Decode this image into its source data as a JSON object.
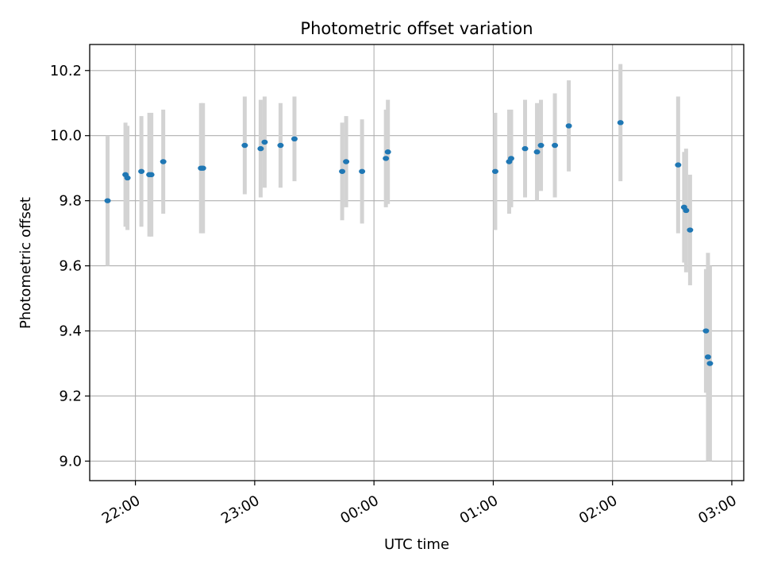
{
  "chart_data": {
    "type": "scatter",
    "title": "Photometric offset variation",
    "xlabel": "UTC time",
    "ylabel": "Photometric offset",
    "x_axis_kind": "time",
    "x_range": [
      "21:37",
      "03:06"
    ],
    "ylim": [
      8.94,
      10.28
    ],
    "x_ticks": [
      "22:00",
      "23:00",
      "00:00",
      "01:00",
      "02:00",
      "03:00"
    ],
    "y_ticks": [
      9.0,
      9.2,
      9.4,
      9.6,
      9.8,
      10.0,
      10.2
    ],
    "y_tick_labels": [
      "9.0",
      "9.2",
      "9.4",
      "9.6",
      "9.8",
      "10.0",
      "10.2"
    ],
    "grid": true,
    "colors": {
      "points": "#1f77b4",
      "errorbars": "#d3d3d3",
      "grid": "#b0b0b0",
      "axes": "#000000"
    },
    "series": [
      {
        "points": [
          {
            "x": "21:46",
            "y": 9.8,
            "err": 0.2
          },
          {
            "x": "21:55",
            "y": 9.88,
            "err": 0.16
          },
          {
            "x": "21:56",
            "y": 9.87,
            "err": 0.16
          },
          {
            "x": "22:03",
            "y": 9.89,
            "err": 0.17
          },
          {
            "x": "22:07",
            "y": 9.88,
            "err": 0.19
          },
          {
            "x": "22:08",
            "y": 9.88,
            "err": 0.19
          },
          {
            "x": "22:14",
            "y": 9.92,
            "err": 0.16
          },
          {
            "x": "22:33",
            "y": 9.9,
            "err": 0.2
          },
          {
            "x": "22:34",
            "y": 9.9,
            "err": 0.2
          },
          {
            "x": "22:55",
            "y": 9.97,
            "err": 0.15
          },
          {
            "x": "23:03",
            "y": 9.96,
            "err": 0.15
          },
          {
            "x": "23:05",
            "y": 9.98,
            "err": 0.14
          },
          {
            "x": "23:13",
            "y": 9.97,
            "err": 0.13
          },
          {
            "x": "23:20",
            "y": 9.99,
            "err": 0.13
          },
          {
            "x": "23:44",
            "y": 9.89,
            "err": 0.15
          },
          {
            "x": "23:46",
            "y": 9.92,
            "err": 0.14
          },
          {
            "x": "23:54",
            "y": 9.89,
            "err": 0.16
          },
          {
            "x": "00:06",
            "y": 9.93,
            "err": 0.15
          },
          {
            "x": "00:07",
            "y": 9.95,
            "err": 0.16
          },
          {
            "x": "01:01",
            "y": 9.89,
            "err": 0.18
          },
          {
            "x": "01:08",
            "y": 9.92,
            "err": 0.16
          },
          {
            "x": "01:09",
            "y": 9.93,
            "err": 0.15
          },
          {
            "x": "01:16",
            "y": 9.96,
            "err": 0.15
          },
          {
            "x": "01:22",
            "y": 9.95,
            "err": 0.15
          },
          {
            "x": "01:24",
            "y": 9.97,
            "err": 0.14
          },
          {
            "x": "01:31",
            "y": 9.97,
            "err": 0.16
          },
          {
            "x": "01:38",
            "y": 10.03,
            "err": 0.14
          },
          {
            "x": "02:04",
            "y": 10.04,
            "err": 0.18
          },
          {
            "x": "02:33",
            "y": 9.91,
            "err": 0.21
          },
          {
            "x": "02:36",
            "y": 9.78,
            "err": 0.17
          },
          {
            "x": "02:37",
            "y": 9.77,
            "err": 0.19
          },
          {
            "x": "02:39",
            "y": 9.71,
            "err": 0.17
          },
          {
            "x": "02:47",
            "y": 9.4,
            "err": 0.19
          },
          {
            "x": "02:48",
            "y": 9.32,
            "err": 0.32
          },
          {
            "x": "02:49",
            "y": 9.3,
            "err": 0.3
          }
        ]
      }
    ]
  }
}
